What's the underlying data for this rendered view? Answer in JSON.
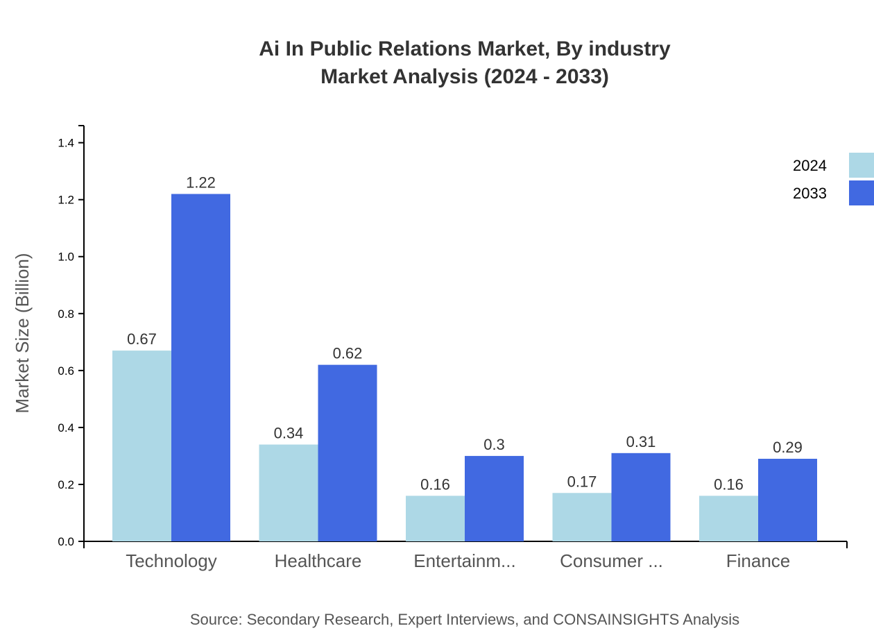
{
  "chart_data": {
    "type": "bar",
    "title": "Ai In Public Relations Market, By industry",
    "subtitle": "Market Analysis (2024 - 2033)",
    "xlabel": "",
    "ylabel": "Market Size (Billion)",
    "ylim": [
      0,
      1.46
    ],
    "yticks": [
      "0.0",
      "0.2",
      "0.4",
      "0.6",
      "0.8",
      "1.0",
      "1.2",
      "1.4"
    ],
    "categories": [
      "Technology",
      "Healthcare",
      "Entertainm...",
      "Consumer ...",
      "Finance"
    ],
    "series": [
      {
        "name": "2024",
        "color": "#add8e6",
        "values": [
          0.67,
          0.34,
          0.16,
          0.17,
          0.16
        ]
      },
      {
        "name": "2033",
        "color": "#4169e1",
        "values": [
          1.22,
          0.62,
          0.3,
          0.31,
          0.29
        ]
      }
    ],
    "legend": "top-right",
    "grid": false,
    "source": "Source: Secondary Research, Expert Interviews, and CONSAINSIGHTS Analysis"
  }
}
